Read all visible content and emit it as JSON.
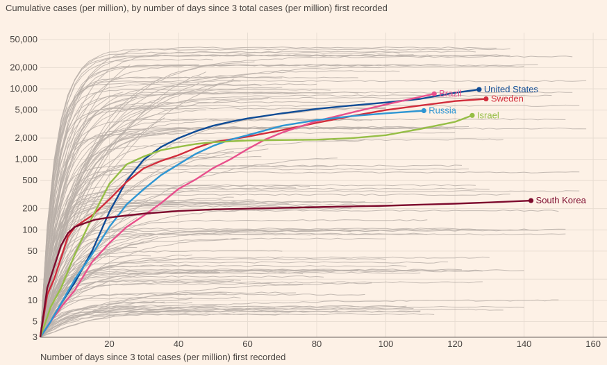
{
  "chart_data": {
    "type": "line",
    "title": "Cumulative cases (per million), by number of days since 3 total cases (per million) first recorded",
    "xlabel": "Number of days since 3 total cases (per million) first recorded",
    "ylabel": "",
    "y_scale": "log",
    "xlim": [
      0,
      164
    ],
    "ylim": [
      3,
      50000
    ],
    "x_ticks": [
      20,
      40,
      60,
      80,
      100,
      120,
      140,
      160
    ],
    "y_ticks": [
      3,
      5,
      10,
      20,
      50,
      100,
      200,
      500,
      1000,
      2000,
      5000,
      10000,
      20000,
      50000
    ],
    "y_tick_labels": [
      "3",
      "5",
      "10",
      "20",
      "50",
      "100",
      "200",
      "500",
      "1,000",
      "2,000",
      "5,000",
      "10,000",
      "20,000",
      "50,000"
    ],
    "grid": true,
    "colors": {
      "background": "#fdf1e6",
      "grid": "#e8ddd2",
      "other_countries": "#b8afa8",
      "United States": "#0f4c96",
      "Sweden": "#d12d3c",
      "Brazil": "#e8508c",
      "Russia": "#2e96d3",
      "Israel": "#96be46",
      "South Korea": "#7d0a2d"
    },
    "highlighted_series": [
      {
        "name": "United States",
        "label_end": true,
        "x": [
          0,
          3,
          6,
          10,
          15,
          20,
          25,
          30,
          35,
          40,
          45,
          50,
          55,
          60,
          70,
          80,
          90,
          100,
          110,
          120,
          127
        ],
        "values": [
          3,
          5,
          9,
          18,
          50,
          180,
          500,
          1000,
          1500,
          2000,
          2500,
          3000,
          3400,
          3800,
          4500,
          5200,
          5800,
          6400,
          7200,
          8800,
          9800
        ]
      },
      {
        "name": "Sweden",
        "label_end": true,
        "x": [
          0,
          2,
          4,
          6,
          8,
          10,
          15,
          20,
          25,
          30,
          35,
          40,
          45,
          50,
          60,
          70,
          80,
          90,
          100,
          110,
          120,
          129
        ],
        "values": [
          3,
          12,
          20,
          40,
          80,
          110,
          160,
          270,
          480,
          750,
          950,
          1150,
          1450,
          1750,
          2100,
          2600,
          3300,
          4100,
          5000,
          5800,
          6700,
          7200
        ]
      },
      {
        "name": "Brazil",
        "label_end": true,
        "x": [
          0,
          3,
          6,
          10,
          15,
          20,
          25,
          30,
          35,
          40,
          45,
          50,
          55,
          60,
          65,
          70,
          80,
          90,
          100,
          110,
          114
        ],
        "values": [
          3,
          5,
          8,
          14,
          35,
          65,
          110,
          160,
          240,
          380,
          520,
          750,
          1000,
          1400,
          1900,
          2400,
          3500,
          4600,
          6000,
          7700,
          8500
        ]
      },
      {
        "name": "Russia",
        "label_end": true,
        "x": [
          0,
          3,
          6,
          10,
          15,
          20,
          25,
          30,
          35,
          40,
          45,
          50,
          55,
          60,
          70,
          80,
          90,
          100,
          111
        ],
        "values": [
          3,
          5,
          9,
          20,
          45,
          110,
          230,
          380,
          600,
          850,
          1200,
          1550,
          1900,
          2200,
          3000,
          3600,
          4100,
          4500,
          4900
        ]
      },
      {
        "name": "Israel",
        "label_end": true,
        "x": [
          0,
          3,
          6,
          10,
          15,
          20,
          25,
          30,
          35,
          40,
          45,
          50,
          60,
          70,
          80,
          90,
          100,
          110,
          120,
          125
        ],
        "values": [
          3,
          8,
          15,
          45,
          150,
          450,
          850,
          1100,
          1350,
          1500,
          1650,
          1750,
          1850,
          1880,
          1900,
          2000,
          2200,
          2700,
          3400,
          4200
        ]
      },
      {
        "name": "South Korea",
        "label_end": true,
        "x": [
          0,
          2,
          4,
          6,
          8,
          10,
          13,
          16,
          20,
          25,
          30,
          40,
          50,
          60,
          70,
          80,
          90,
          100,
          110,
          120,
          130,
          142
        ],
        "values": [
          3,
          15,
          30,
          60,
          90,
          110,
          125,
          140,
          150,
          160,
          170,
          185,
          195,
          200,
          205,
          210,
          215,
          220,
          228,
          235,
          245,
          260
        ]
      }
    ],
    "other_series_note": "Approximately 150 other countries shown as thin grey lines"
  }
}
